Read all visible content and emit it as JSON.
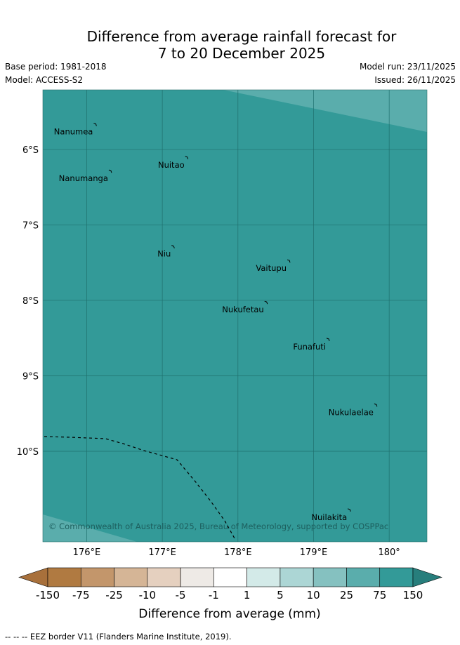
{
  "header": {
    "title_line1": "Difference from average rainfall forecast for",
    "title_line2": "7 to 20 December 2025",
    "base_period": "Base period: 1981-2018",
    "model": "Model: ACCESS-S2",
    "model_run": "Model run: 23/11/2025",
    "issued": "Issued: 26/11/2025"
  },
  "map": {
    "lon_ticks": [
      "176°E",
      "177°E",
      "178°E",
      "179°E",
      "180°"
    ],
    "lat_ticks": [
      "6°S",
      "7°S",
      "8°S",
      "9°S",
      "10°S"
    ],
    "copyright": "© Commonwealth of Australia 2025, Bureau of Meteorology, supported by COSPPac",
    "places": [
      {
        "name": "Nanumea",
        "lon": 176.12,
        "lat": -5.67
      },
      {
        "name": "Nuitao",
        "lon": 177.33,
        "lat": -6.11
      },
      {
        "name": "Nanumanga",
        "lon": 176.32,
        "lat": -6.29
      },
      {
        "name": "Niu",
        "lon": 177.15,
        "lat": -7.29
      },
      {
        "name": "Vaitupu",
        "lon": 178.68,
        "lat": -7.48
      },
      {
        "name": "Nukufetau",
        "lon": 178.38,
        "lat": -8.03
      },
      {
        "name": "Funafuti",
        "lon": 179.2,
        "lat": -8.52
      },
      {
        "name": "Nukulaelae",
        "lon": 179.83,
        "lat": -9.39
      },
      {
        "name": "Nuilakita",
        "lon": 179.48,
        "lat": -10.78
      }
    ],
    "colors": {
      "main_fill": "#339a98",
      "light_fill": "#5aadac",
      "grid_line": "#1f6f6d"
    }
  },
  "colorbar": {
    "labels": [
      "-150",
      "-75",
      "-25",
      "-10",
      "-5",
      "-1",
      "1",
      "5",
      "10",
      "25",
      "75",
      "150"
    ],
    "colors": [
      "#a8703b",
      "#b07a41",
      "#c3966b",
      "#d5b596",
      "#e5d0bf",
      "#eeeae6",
      "#ffffff",
      "#d3eae8",
      "#acd6d5",
      "#85c1c0",
      "#5aadac",
      "#339a98",
      "#277e7c"
    ],
    "label": "Difference from average (mm)"
  },
  "footnote": "--  --  -- EEZ border V11 (Flanders Marine Institute, 2019)."
}
